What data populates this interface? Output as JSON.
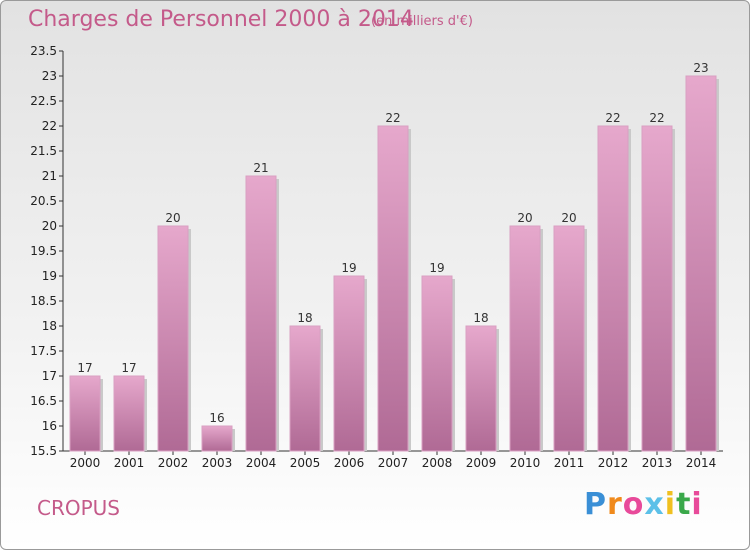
{
  "chart_data": {
    "type": "bar",
    "title": "Charges de Personnel 2000 à 2014",
    "subtitle": "(en milliers d'€)",
    "xlabel": "",
    "ylabel": "",
    "categories": [
      "2000",
      "2001",
      "2002",
      "2003",
      "2004",
      "2005",
      "2006",
      "2007",
      "2008",
      "2009",
      "2010",
      "2011",
      "2012",
      "2013",
      "2014"
    ],
    "values": [
      17,
      17,
      20,
      16,
      21,
      18,
      19,
      22,
      19,
      18,
      20,
      20,
      22,
      22,
      23
    ],
    "value_labels": [
      "17",
      "17",
      "20",
      "16",
      "21",
      "18",
      "19",
      "22",
      "19",
      "18",
      "20",
      "20",
      "22",
      "22",
      "23"
    ],
    "ylim": [
      15.5,
      23.5
    ],
    "yticks": [
      "15.5",
      "16",
      "16.5",
      "17",
      "17.5",
      "18",
      "18.5",
      "19",
      "19.5",
      "20",
      "20.5",
      "21",
      "21.5",
      "22",
      "22.5",
      "23",
      "23.5"
    ],
    "grid": false,
    "bar_color": "#d68fb8"
  },
  "footer": {
    "commune": "CROPUS"
  },
  "logo": {
    "letters": [
      "P",
      "r",
      "o",
      "x",
      "i",
      "t",
      "i"
    ],
    "colors": [
      "#3a8fd6",
      "#f08a1c",
      "#e84a9a",
      "#5cc0e8",
      "#f0c020",
      "#3aa84a",
      "#e84a9a"
    ]
  }
}
